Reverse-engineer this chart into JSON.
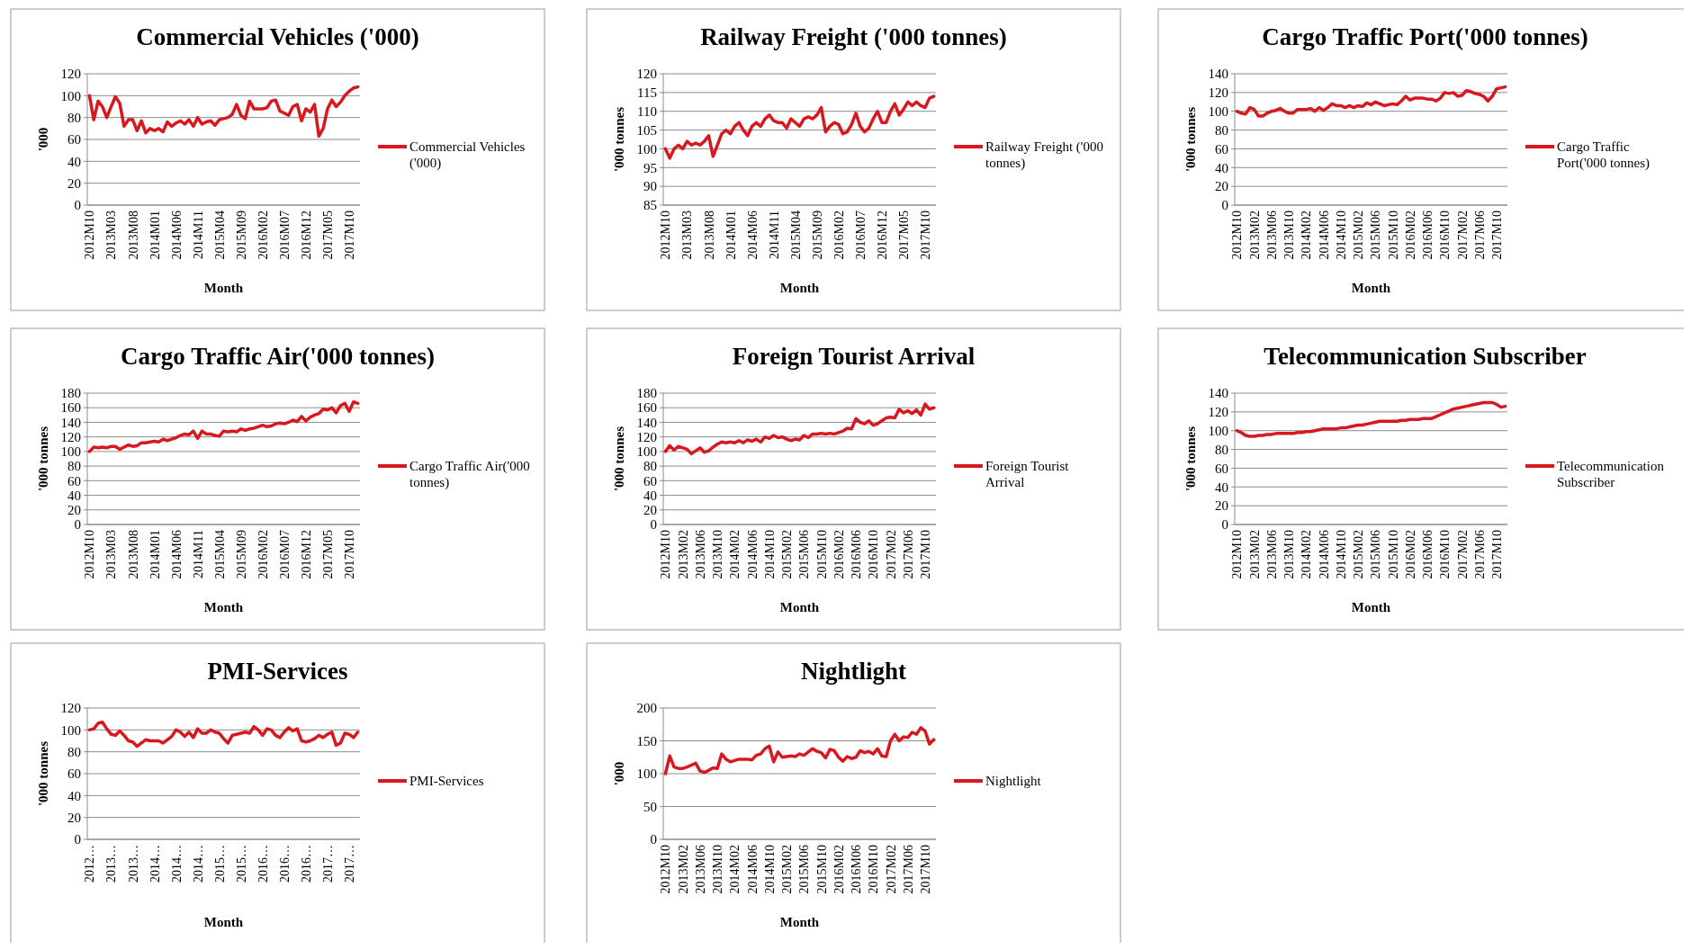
{
  "chart_data": [
    {
      "type": "line",
      "title": "Commercial Vehicles ('000)",
      "xlabel": "Month",
      "ylabel": "'000",
      "grid": "y",
      "legend": "right",
      "ylim": [
        0,
        120
      ],
      "yticks": [
        0,
        20,
        40,
        60,
        80,
        100,
        120
      ],
      "categories": [
        "2012M10",
        null,
        null,
        null,
        null,
        "2013M03",
        null,
        null,
        null,
        null,
        "2013M08",
        null,
        null,
        null,
        null,
        "2014M01",
        null,
        null,
        null,
        null,
        "2014M06",
        null,
        null,
        null,
        null,
        "2014M11",
        null,
        null,
        null,
        null,
        "2015M04",
        null,
        null,
        null,
        null,
        "2015M09",
        null,
        null,
        null,
        null,
        "2016M02",
        null,
        null,
        null,
        null,
        "2016M07",
        null,
        null,
        null,
        null,
        "2016M12",
        null,
        null,
        null,
        null,
        "2017M05",
        null,
        null,
        null,
        null,
        "2017M10",
        null,
        null
      ],
      "series": [
        {
          "name": "Commercial Vehicles ('000)",
          "color": "#d7191f",
          "values": [
            100,
            78,
            95,
            90,
            80,
            90,
            99,
            93,
            72,
            78,
            78,
            68,
            77,
            66,
            70,
            68,
            70,
            67,
            76,
            72,
            75,
            77,
            74,
            78,
            72,
            80,
            74,
            76,
            77,
            73,
            78,
            79,
            80,
            83,
            92,
            82,
            79,
            95,
            88,
            88,
            88,
            89,
            95,
            96,
            86,
            84,
            82,
            90,
            92,
            77,
            88,
            85,
            92,
            63,
            70,
            88,
            96,
            90,
            94,
            100,
            104,
            107,
            108
          ]
        }
      ]
    },
    {
      "type": "line",
      "title": "Railway Freight ('000 tonnes)",
      "xlabel": "Month",
      "ylabel": "'000 tonnes",
      "grid": "y",
      "legend": "right",
      "ylim": [
        85,
        120
      ],
      "yticks": [
        85,
        90,
        95,
        100,
        105,
        110,
        115,
        120
      ],
      "categories": [
        "2012M10",
        null,
        null,
        null,
        null,
        "2013M03",
        null,
        null,
        null,
        null,
        "2013M08",
        null,
        null,
        null,
        null,
        "2014M01",
        null,
        null,
        null,
        null,
        "2014M06",
        null,
        null,
        null,
        null,
        "2014M11",
        null,
        null,
        null,
        null,
        "2015M04",
        null,
        null,
        null,
        null,
        "2015M09",
        null,
        null,
        null,
        null,
        "2016M02",
        null,
        null,
        null,
        null,
        "2016M07",
        null,
        null,
        null,
        null,
        "2016M12",
        null,
        null,
        null,
        null,
        "2017M05",
        null,
        null,
        null,
        null,
        "2017M10",
        null,
        null
      ],
      "series": [
        {
          "name": "Railway Freight ('000 tonnes)",
          "color": "#d7191f",
          "values": [
            100,
            97.5,
            100,
            101,
            100,
            102,
            101,
            101.5,
            101,
            102,
            103.5,
            98,
            101,
            104,
            105,
            104,
            106,
            107,
            105,
            103.5,
            106,
            107,
            106,
            108,
            109,
            107.5,
            107,
            107,
            105.5,
            108,
            107,
            106,
            108,
            108.5,
            108,
            109,
            111,
            104.5,
            106,
            107,
            106.5,
            104,
            104.5,
            106.5,
            109.5,
            106,
            104.5,
            105.5,
            108,
            110,
            107,
            107,
            110,
            112,
            109,
            110.5,
            112.5,
            111.5,
            112.5,
            111.5,
            111,
            113.5,
            114
          ]
        }
      ]
    },
    {
      "type": "line",
      "title": "Cargo Traffic Port('000 tonnes)",
      "xlabel": "Month",
      "ylabel": "'000 tonnes",
      "grid": "y",
      "legend": "right",
      "ylim": [
        0,
        140
      ],
      "yticks": [
        0,
        20,
        40,
        60,
        80,
        100,
        120,
        140
      ],
      "categories": [
        "2012M10",
        null,
        null,
        null,
        "2013M02",
        null,
        null,
        null,
        "2013M06",
        null,
        null,
        null,
        "2013M10",
        null,
        null,
        null,
        "2014M02",
        null,
        null,
        null,
        "2014M06",
        null,
        null,
        null,
        "2014M10",
        null,
        null,
        null,
        "2015M02",
        null,
        null,
        null,
        "2015M06",
        null,
        null,
        null,
        "2015M10",
        null,
        null,
        null,
        "2016M02",
        null,
        null,
        null,
        "2016M06",
        null,
        null,
        null,
        "2016M10",
        null,
        null,
        null,
        "2017M02",
        null,
        null,
        null,
        "2017M06",
        null,
        null,
        null,
        "2017M10",
        null,
        null
      ],
      "series": [
        {
          "name": "Cargo Traffic Port('000 tonnes)",
          "color": "#d7191f",
          "values": [
            100,
            98,
            97,
            104,
            102,
            95,
            95,
            98,
            100,
            101,
            103,
            100,
            98,
            98,
            102,
            102,
            102,
            103,
            100,
            104,
            101,
            104,
            108,
            106,
            106,
            104,
            106,
            104,
            106,
            105,
            109,
            107,
            110,
            108,
            106,
            107,
            108,
            107,
            111,
            116,
            112,
            114,
            114,
            114,
            113,
            113,
            111,
            114,
            120,
            119,
            120,
            116,
            117,
            122,
            121,
            119,
            118,
            116,
            111,
            116,
            124,
            125,
            126
          ]
        }
      ]
    },
    {
      "type": "line",
      "title": "Cargo Traffic Air('000 tonnes)",
      "xlabel": "Month",
      "ylabel": "'000 tonnes",
      "grid": "y",
      "legend": "right",
      "ylim": [
        0,
        180
      ],
      "yticks": [
        0,
        20,
        40,
        60,
        80,
        100,
        120,
        140,
        160,
        180
      ],
      "categories": [
        "2012M10",
        null,
        null,
        null,
        null,
        "2013M03",
        null,
        null,
        null,
        null,
        "2013M08",
        null,
        null,
        null,
        null,
        "2014M01",
        null,
        null,
        null,
        null,
        "2014M06",
        null,
        null,
        null,
        null,
        "2014M11",
        null,
        null,
        null,
        null,
        "2015M04",
        null,
        null,
        null,
        null,
        "2015M09",
        null,
        null,
        null,
        null,
        "2016M02",
        null,
        null,
        null,
        null,
        "2016M07",
        null,
        null,
        null,
        null,
        "2016M12",
        null,
        null,
        null,
        null,
        "2017M05",
        null,
        null,
        null,
        null,
        "2017M10",
        null,
        null
      ],
      "series": [
        {
          "name": "Cargo Traffic Air('000 tonnes)",
          "color": "#d7191f",
          "values": [
            100,
            106,
            105,
            106,
            105,
            107,
            107,
            103,
            106,
            109,
            107,
            108,
            112,
            112,
            113,
            114,
            113,
            117,
            115,
            117,
            119,
            122,
            124,
            123,
            128,
            118,
            128,
            124,
            124,
            122,
            121,
            128,
            127,
            128,
            127,
            131,
            129,
            131,
            132,
            134,
            136,
            134,
            135,
            138,
            139,
            138,
            140,
            143,
            141,
            148,
            142,
            147,
            150,
            152,
            158,
            157,
            160,
            153,
            163,
            166,
            155,
            168,
            166
          ]
        }
      ]
    },
    {
      "type": "line",
      "title": "Foreign Tourist Arrival",
      "xlabel": "Month",
      "ylabel": "'000 tonnes",
      "grid": "y",
      "legend": "right",
      "ylim": [
        0,
        180
      ],
      "yticks": [
        0,
        20,
        40,
        60,
        80,
        100,
        120,
        140,
        160,
        180
      ],
      "categories": [
        "2012M10",
        null,
        null,
        null,
        "2013M02",
        null,
        null,
        null,
        "2013M06",
        null,
        null,
        null,
        "2013M10",
        null,
        null,
        null,
        "2014M02",
        null,
        null,
        null,
        "2014M06",
        null,
        null,
        null,
        "2014M10",
        null,
        null,
        null,
        "2015M02",
        null,
        null,
        null,
        "2015M06",
        null,
        null,
        null,
        "2015M10",
        null,
        null,
        null,
        "2016M02",
        null,
        null,
        null,
        "2016M06",
        null,
        null,
        null,
        "2016M10",
        null,
        null,
        null,
        "2017M02",
        null,
        null,
        null,
        "2017M06",
        null,
        null,
        null,
        "2017M10",
        null,
        null
      ],
      "series": [
        {
          "name": "Foreign Tourist Arrival",
          "color": "#d7191f",
          "values": [
            100,
            108,
            102,
            107,
            105,
            103,
            97,
            101,
            105,
            99,
            101,
            106,
            110,
            113,
            112,
            113,
            112,
            115,
            112,
            116,
            114,
            117,
            113,
            120,
            118,
            122,
            119,
            120,
            117,
            115,
            117,
            116,
            122,
            119,
            124,
            124,
            125,
            124,
            125,
            124,
            126,
            128,
            132,
            131,
            145,
            140,
            138,
            142,
            136,
            138,
            142,
            146,
            147,
            146,
            158,
            153,
            156,
            152,
            157,
            150,
            165,
            158,
            160
          ]
        }
      ]
    },
    {
      "type": "line",
      "title": "Telecommunication  Subscriber",
      "xlabel": "Month",
      "ylabel": "'000 tonnes",
      "grid": "y",
      "legend": "right",
      "ylim": [
        0,
        140
      ],
      "yticks": [
        0,
        20,
        40,
        60,
        80,
        100,
        120,
        140
      ],
      "categories": [
        "2012M10",
        null,
        null,
        null,
        "2013M02",
        null,
        null,
        null,
        "2013M06",
        null,
        null,
        null,
        "2013M10",
        null,
        null,
        null,
        "2014M02",
        null,
        null,
        null,
        "2014M06",
        null,
        null,
        null,
        "2014M10",
        null,
        null,
        null,
        "2015M02",
        null,
        null,
        null,
        "2015M06",
        null,
        null,
        null,
        "2015M10",
        null,
        null,
        null,
        "2016M02",
        null,
        null,
        null,
        "2016M06",
        null,
        null,
        null,
        "2016M10",
        null,
        null,
        null,
        "2017M02",
        null,
        null,
        null,
        "2017M06",
        null,
        null,
        null,
        "2017M10",
        null,
        null
      ],
      "series": [
        {
          "name": "Telecommunication Subscriber",
          "color": "#d7191f",
          "values": [
            100,
            98,
            95,
            94,
            94,
            95,
            95,
            96,
            96,
            97,
            97,
            97,
            97,
            97,
            98,
            98,
            99,
            99,
            100,
            101,
            102,
            102,
            102,
            102,
            103,
            103,
            104,
            105,
            106,
            106,
            107,
            108,
            109,
            110,
            110,
            110,
            110,
            110,
            111,
            111,
            112,
            112,
            112,
            113,
            113,
            113,
            115,
            117,
            119,
            121,
            123,
            124,
            125,
            126,
            127,
            128,
            129,
            130,
            130,
            130,
            128,
            125,
            126
          ]
        }
      ]
    },
    {
      "type": "line",
      "title": "PMI-Services",
      "xlabel": "Month",
      "ylabel": "'000 tonnes",
      "grid": "y",
      "legend": "right",
      "ylim": [
        0,
        120
      ],
      "yticks": [
        0,
        20,
        40,
        60,
        80,
        100,
        120
      ],
      "categories": [
        "2012…",
        null,
        null,
        null,
        null,
        "2013…",
        null,
        null,
        null,
        null,
        "2013…",
        null,
        null,
        null,
        null,
        "2014…",
        null,
        null,
        null,
        null,
        "2014…",
        null,
        null,
        null,
        null,
        "2014…",
        null,
        null,
        null,
        null,
        "2015…",
        null,
        null,
        null,
        null,
        "2015…",
        null,
        null,
        null,
        null,
        "2016…",
        null,
        null,
        null,
        null,
        "2016…",
        null,
        null,
        null,
        null,
        "2016…",
        null,
        null,
        null,
        null,
        "2017…",
        null,
        null,
        null,
        null,
        "2017…",
        null,
        null
      ],
      "series": [
        {
          "name": "PMI-Services",
          "color": "#d7191f",
          "values": [
            100,
            101,
            106,
            107,
            101,
            96,
            95,
            99,
            95,
            90,
            89,
            85,
            88,
            91,
            90,
            90,
            90,
            88,
            91,
            94,
            100,
            98,
            94,
            98,
            93,
            101,
            97,
            97,
            100,
            98,
            97,
            92,
            88,
            95,
            96,
            97,
            98,
            97,
            103,
            100,
            95,
            101,
            100,
            95,
            93,
            98,
            102,
            99,
            101,
            90,
            89,
            90,
            92,
            95,
            93,
            96,
            98,
            86,
            88,
            97,
            96,
            93,
            98
          ]
        }
      ]
    },
    {
      "type": "line",
      "title": "Nightlight",
      "xlabel": "Month",
      "ylabel": "'000",
      "grid": "y",
      "legend": "right",
      "ylim": [
        0,
        200
      ],
      "yticks": [
        0,
        50,
        100,
        150,
        200
      ],
      "categories": [
        "2012M10",
        null,
        null,
        null,
        "2013M02",
        null,
        null,
        null,
        "2013M06",
        null,
        null,
        null,
        "2013M10",
        null,
        null,
        null,
        "2014M02",
        null,
        null,
        null,
        "2014M06",
        null,
        null,
        null,
        "2014M10",
        null,
        null,
        null,
        "2015M02",
        null,
        null,
        null,
        "2015M06",
        null,
        null,
        null,
        "2015M10",
        null,
        null,
        null,
        "2016M02",
        null,
        null,
        null,
        "2016M06",
        null,
        null,
        null,
        "2016M10",
        null,
        null,
        null,
        "2017M02",
        null,
        null,
        null,
        "2017M06",
        null,
        null,
        null,
        "2017M10",
        null,
        null
      ],
      "series": [
        {
          "name": "Nightlight",
          "color": "#d7191f",
          "values": [
            100,
            127,
            110,
            108,
            108,
            110,
            113,
            116,
            104,
            102,
            105,
            109,
            108,
            130,
            122,
            118,
            120,
            122,
            122,
            122,
            121,
            128,
            130,
            138,
            142,
            118,
            133,
            125,
            126,
            127,
            126,
            130,
            128,
            133,
            138,
            134,
            132,
            124,
            137,
            135,
            125,
            119,
            126,
            123,
            125,
            135,
            132,
            134,
            130,
            138,
            127,
            126,
            150,
            160,
            150,
            156,
            155,
            163,
            160,
            170,
            165,
            145,
            152
          ]
        }
      ]
    }
  ]
}
